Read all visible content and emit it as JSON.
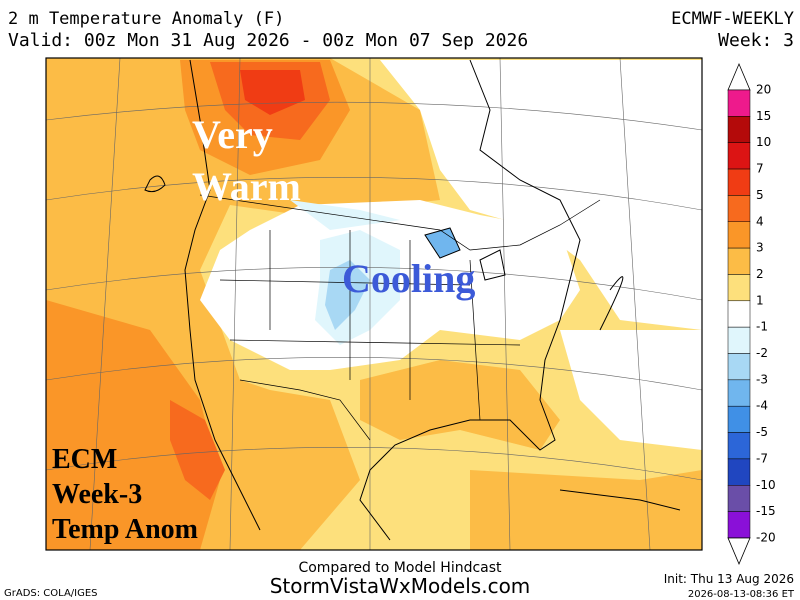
{
  "header": {
    "title": "2 m Temperature Anomaly (F)",
    "model": "ECMWF-WEEKLY",
    "valid": "Valid: 00z Mon 31 Aug 2026 - 00z Mon 07 Sep 2026",
    "week": "Week: 3"
  },
  "annotations": {
    "very": "Very",
    "warm": "Warm",
    "cooling": "Cooling",
    "ecm": "ECM",
    "week3": "Week-3",
    "temp_anom": "Temp Anom"
  },
  "colorbar": {
    "levels": [
      20,
      15,
      10,
      7,
      5,
      4,
      3,
      2,
      1,
      -1,
      -2,
      -3,
      -4,
      -5,
      -7,
      -10,
      -15,
      -20
    ],
    "colors": [
      "#ee1a8c",
      "#b40a0a",
      "#dc1414",
      "#f03c14",
      "#f76a1e",
      "#fa9628",
      "#fcbc46",
      "#fde07c",
      "#ffffff",
      "#e0f6fc",
      "#a8d8f4",
      "#70b6ee",
      "#4090e6",
      "#2c66d8",
      "#2046c0",
      "#6a4ea8",
      "#8a10d8"
    ]
  },
  "footer": {
    "hindcast": "Compared to Model Hindcast",
    "site": "StormVistaWxModels.com",
    "grads": "GrADS: COLA/IGES",
    "init": "Init: Thu 13 Aug 2026",
    "stamp": "2026-08-13-08:36 ET"
  }
}
